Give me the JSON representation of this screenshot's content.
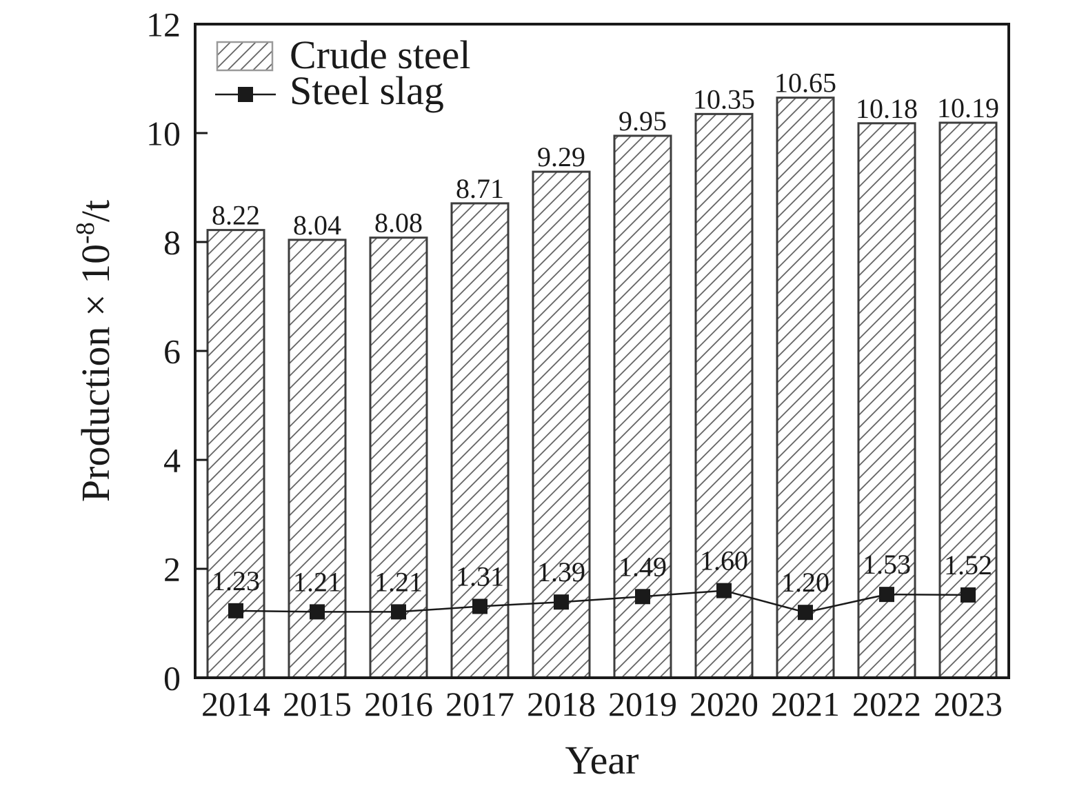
{
  "figure": {
    "background": "#ffffff"
  },
  "chart_data": {
    "type": "bar+line",
    "title": "",
    "xlabel": "Year",
    "ylabel": "Production × 10⁻⁸/t",
    "ylabel_prefix": "Production × 10",
    "ylabel_superscript": "-8",
    "ylabel_suffix": "/t",
    "ylim": [
      0,
      12
    ],
    "yticks": [
      0,
      2,
      4,
      6,
      8,
      10,
      12
    ],
    "grid": false,
    "legend_position": "top-left",
    "categories": [
      "2014",
      "2015",
      "2016",
      "2017",
      "2018",
      "2019",
      "2020",
      "2021",
      "2022",
      "2023"
    ],
    "series": [
      {
        "name": "Crude steel",
        "type": "bar",
        "style": "white-fill-diagonal-hatch",
        "values": [
          8.22,
          8.04,
          8.08,
          8.71,
          9.29,
          9.95,
          10.35,
          10.65,
          10.18,
          10.19
        ],
        "labels": [
          "8.22",
          "8.04",
          "8.08",
          "8.71",
          "9.29",
          "9.95",
          "10.35",
          "10.65",
          "10.18",
          "10.19"
        ]
      },
      {
        "name": "Steel slag",
        "type": "line",
        "marker": "filled-square",
        "values": [
          1.23,
          1.21,
          1.21,
          1.31,
          1.39,
          1.49,
          1.6,
          1.2,
          1.53,
          1.52
        ],
        "labels": [
          "1.23",
          "1.21",
          "1.21",
          "1.31",
          "1.39",
          "1.49",
          "1.60",
          "1.20",
          "1.53",
          "1.52"
        ]
      }
    ],
    "colors": {
      "text": "#1a1a1a",
      "axis": "#1a1a1a",
      "bar_fill": "#ffffff",
      "bar_border": "#3d3d3d",
      "hatch_line": "#5a5a5a",
      "slag_line": "#1a1a1a",
      "marker": "#1a1a1a",
      "legend_swatch_border": "#999999"
    }
  }
}
